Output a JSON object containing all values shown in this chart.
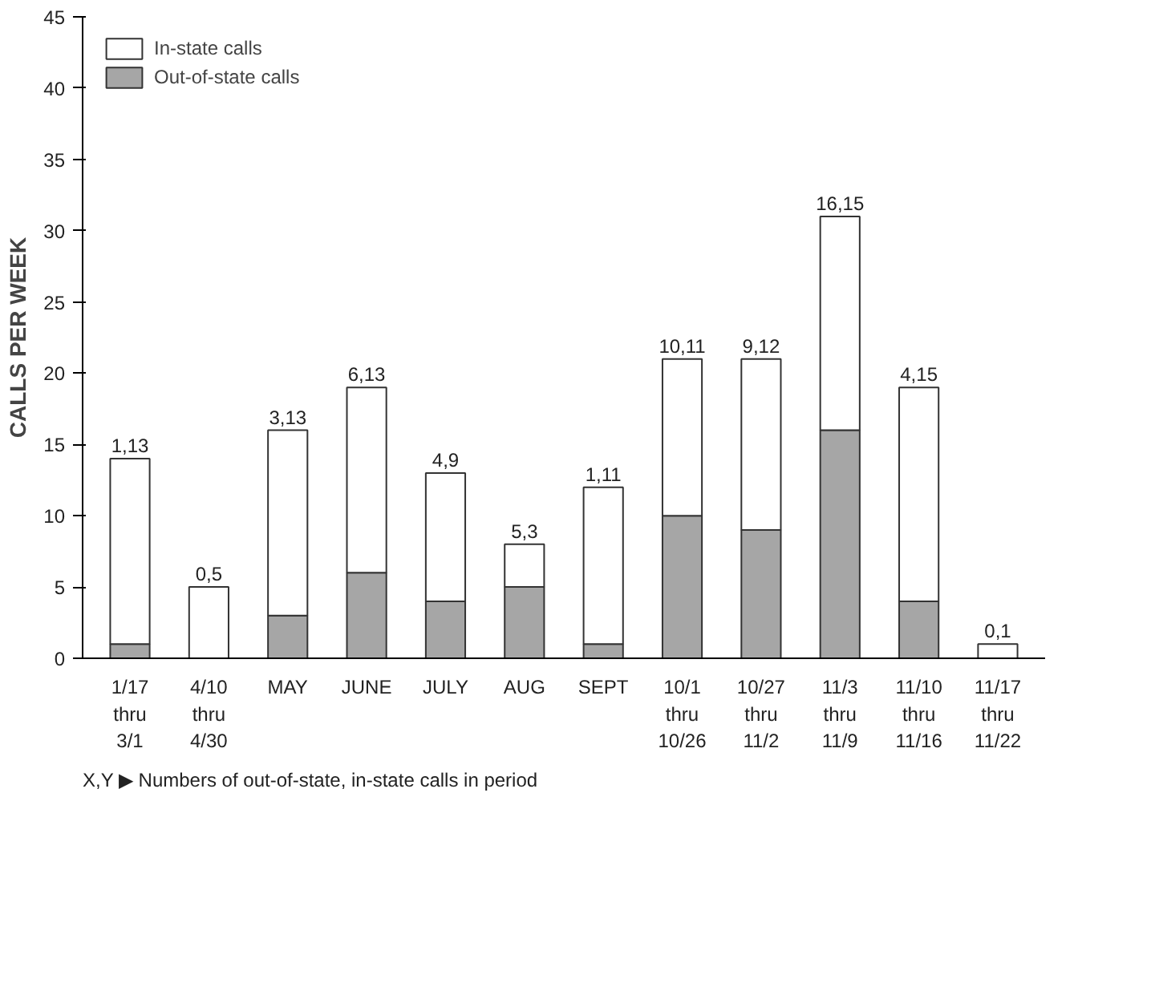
{
  "chart_data": {
    "type": "bar",
    "stacked": true,
    "ylabel": "CALLS PER WEEK",
    "categories": [
      "1/17\nthru\n3/1",
      "4/10\nthru\n4/30",
      "MAY",
      "JUNE",
      "JULY",
      "AUG",
      "SEPT",
      "10/1\nthru\n10/26",
      "10/27\nthru\n11/2",
      "11/3\nthru\n11/9",
      "11/10\nthru\n11/16",
      "11/17\nthru\n11/22"
    ],
    "series": [
      {
        "name": "Out-of-state calls",
        "color": "#a6a6a6",
        "values": [
          1,
          0,
          3,
          6,
          4,
          5,
          1,
          10,
          9,
          16,
          4,
          0
        ]
      },
      {
        "name": "In-state calls",
        "color": "#ffffff",
        "values": [
          13,
          5,
          13,
          13,
          9,
          3,
          11,
          11,
          12,
          15,
          15,
          1
        ]
      }
    ],
    "ylim": [
      0,
      45
    ],
    "yticks": [
      0,
      5,
      10,
      15,
      20,
      25,
      30,
      35,
      40,
      45
    ],
    "grid": false,
    "legend": "top left",
    "annotations": [
      {
        "text": "1,13",
        "x": "1/17\nthru\n3/1",
        "y": 14
      },
      {
        "text": "0,5",
        "x": "4/10\nthru\n4/30",
        "y": 5
      },
      {
        "text": "3,13",
        "x": "MAY",
        "y": 16
      },
      {
        "text": "6,13",
        "x": "JUNE",
        "y": 19
      },
      {
        "text": "4,9",
        "x": "JULY",
        "y": 13
      },
      {
        "text": "5,3",
        "x": "AUG",
        "y": 8
      },
      {
        "text": "1,11",
        "x": "SEPT",
        "y": 12
      },
      {
        "text": "10,11",
        "x": "10/1\nthru\n10/26",
        "y": 21
      },
      {
        "text": "9,12",
        "x": "10/27\nthru\n11/2",
        "y": 21
      },
      {
        "text": "16,15",
        "x": "11/3\nthru\n11/9",
        "y": 31
      },
      {
        "text": "4,15",
        "x": "11/10\nthru\n11/16",
        "y": 19
      },
      {
        "text": "0,1",
        "x": "11/17\nthru\n11/22",
        "y": 1
      },
      "X,Y ▶ Numbers of out-of-state, in-state calls in period"
    ]
  }
}
